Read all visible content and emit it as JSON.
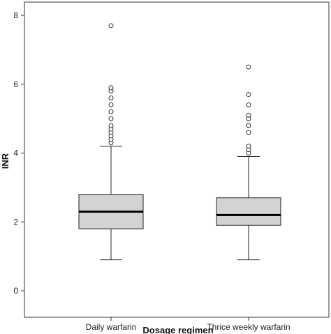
{
  "chart_data": {
    "type": "boxplot",
    "title": "",
    "xlabel": "Dosage regimen",
    "ylabel": "INR",
    "ylim": [
      -0.2,
      8.4
    ],
    "yticks": [
      0,
      2,
      4,
      6,
      8
    ],
    "grid": false,
    "box_fill": "#d3d3d3",
    "categories": [
      "Daily warfarin",
      "Thrice weekly warfarin"
    ],
    "boxes": [
      {
        "label": "Daily warfarin",
        "whisker_low": 0.9,
        "q1": 1.8,
        "median": 2.3,
        "q3": 2.8,
        "whisker_high": 4.2,
        "outliers": [
          4.3,
          4.4,
          4.5,
          4.6,
          4.7,
          4.8,
          5.0,
          5.2,
          5.4,
          5.6,
          5.8,
          5.9,
          7.7
        ]
      },
      {
        "label": "Thrice weekly warfarin",
        "whisker_low": 0.9,
        "q1": 1.9,
        "median": 2.2,
        "q3": 2.7,
        "whisker_high": 3.9,
        "outliers": [
          4.0,
          4.1,
          4.2,
          4.6,
          4.8,
          5.0,
          5.1,
          5.4,
          5.7,
          6.5
        ]
      }
    ]
  }
}
